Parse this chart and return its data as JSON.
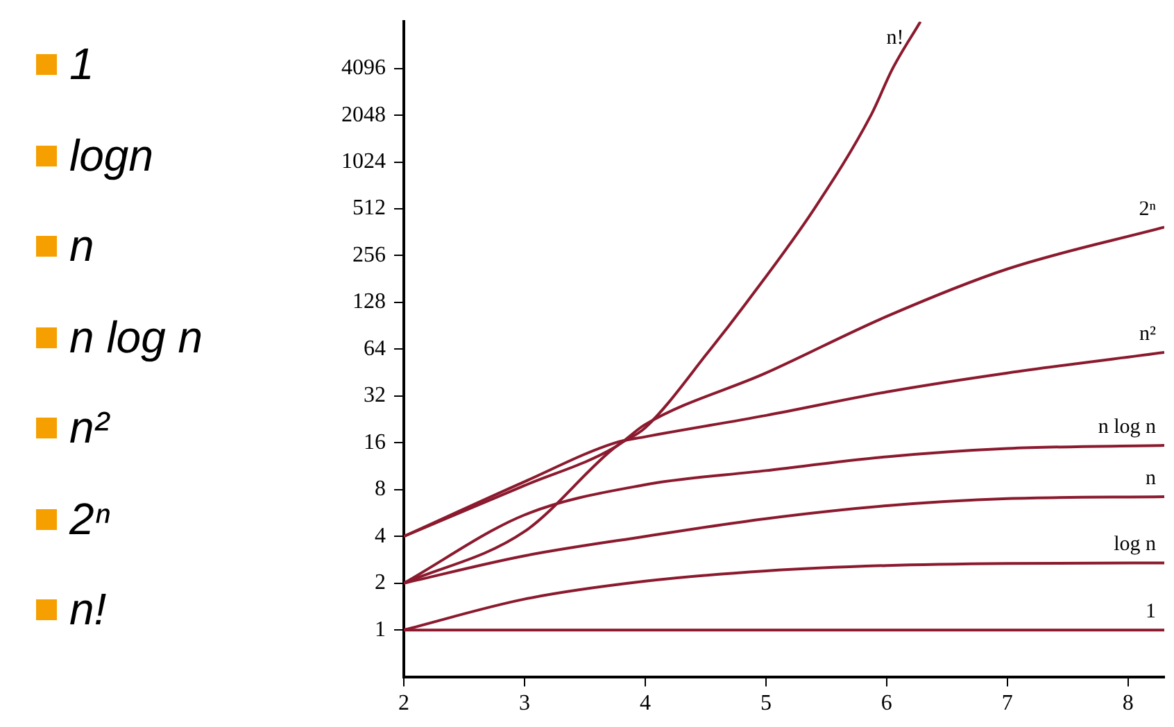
{
  "chart_data": {
    "type": "line",
    "annotations": [
      "1",
      "logn",
      "n",
      "n log n",
      "n²",
      "2ⁿ",
      "n!"
    ],
    "xlim": [
      2,
      8.3
    ],
    "xticks": [
      2,
      3,
      4,
      5,
      6,
      7,
      8
    ],
    "ylim": [
      0.5,
      8192
    ],
    "yticks": [
      1,
      2,
      4,
      8,
      16,
      32,
      64,
      128,
      256,
      512,
      1024,
      2048,
      4096
    ],
    "log": "y",
    "grid": false,
    "legend": false,
    "marker": "none",
    "line_style": "solid",
    "series": [
      {
        "name": "1",
        "color": "#8b1a2e",
        "x": [
          2,
          5,
          8.3
        ],
        "values": [
          1,
          1,
          1
        ]
      },
      {
        "name": "log n",
        "color": "#8b1a2e",
        "x": [
          2,
          3,
          4,
          5,
          6,
          7,
          8.3
        ],
        "values": [
          1,
          1.58,
          2.06,
          2.4,
          2.6,
          2.68,
          2.7
        ]
      },
      {
        "name": "n",
        "color": "#8b1a2e",
        "x": [
          2,
          3,
          4,
          5,
          6,
          7,
          8.3
        ],
        "values": [
          2,
          3,
          4,
          5.2,
          6.3,
          7,
          7.2
        ]
      },
      {
        "name": "n log n",
        "color": "#8b1a2e",
        "x": [
          2,
          3,
          4,
          5,
          6,
          7,
          8.3
        ],
        "values": [
          2,
          5.5,
          8.6,
          10.6,
          13,
          14.7,
          15.4
        ]
      },
      {
        "name": "n²",
        "color": "#8b1a2e",
        "x": [
          2,
          3,
          3.75,
          4,
          5,
          6,
          7,
          8.3
        ],
        "values": [
          4,
          9,
          16,
          17.5,
          24,
          34,
          45,
          61
        ]
      },
      {
        "name": "2ⁿ",
        "color": "#8b1a2e",
        "x": [
          2,
          3,
          3.75,
          4,
          5,
          6,
          7,
          8.3
        ],
        "values": [
          4,
          8.5,
          15,
          21,
          45,
          104,
          210,
          390
        ]
      },
      {
        "name": "n!",
        "color": "#8b1a2e",
        "x": [
          2,
          3,
          3.75,
          4,
          4.54,
          4.84,
          5.4,
          5.87,
          6.05,
          6.28
        ],
        "values": [
          2,
          4.3,
          15,
          20,
          64,
          128,
          512,
          2048,
          4096,
          8192
        ]
      }
    ]
  }
}
